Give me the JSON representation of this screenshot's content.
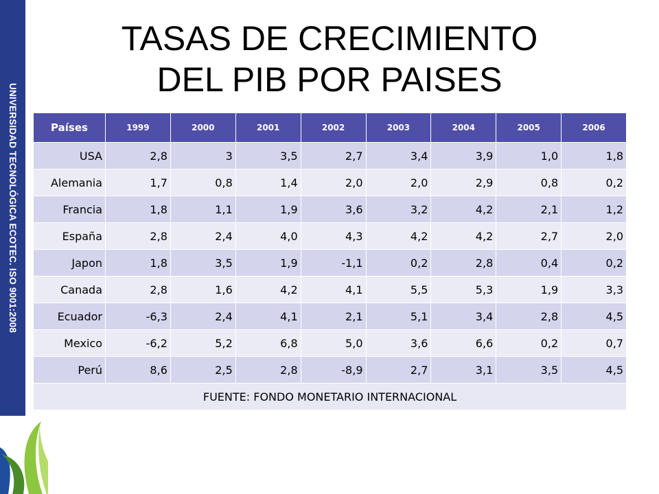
{
  "sidebar_text": "UNIVERSIDAD TECNOLÓGICA ECOTEC. ISO 9001:2008",
  "title_line1": "TASAS DE CRECIMIENTO",
  "title_line2": "DEL PIB POR PAISES",
  "table": {
    "headers": [
      "Países",
      "1999",
      "2000",
      "2001",
      "2002",
      "2003",
      "2004",
      "2005",
      "2006"
    ],
    "rows": [
      [
        "USA",
        "2,8",
        "3",
        "3,5",
        "2,7",
        "3,4",
        "3,9",
        "1,0",
        "1,8"
      ],
      [
        "Alemania",
        "1,7",
        "0,8",
        "1,4",
        "2,0",
        "2,0",
        "2,9",
        "0,8",
        "0,2"
      ],
      [
        "Francia",
        "1,8",
        "1,1",
        "1,9",
        "3,6",
        "3,2",
        "4,2",
        "2,1",
        "1,2"
      ],
      [
        "España",
        "2,8",
        "2,4",
        "4,0",
        "4,3",
        "4,2",
        "4,2",
        "2,7",
        "2,0"
      ],
      [
        "Japon",
        "1,8",
        "3,5",
        "1,9",
        "-1,1",
        "0,2",
        "2,8",
        "0,4",
        "0,2"
      ],
      [
        "Canada",
        "2,8",
        "1,6",
        "4,2",
        "4,1",
        "5,5",
        "5,3",
        "1,9",
        "3,3"
      ],
      [
        "Ecuador",
        "-6,3",
        "2,4",
        "4,1",
        "2,1",
        "5,1",
        "3,4",
        "2,8",
        "4,5"
      ],
      [
        "Mexico",
        "-6,2",
        "5,2",
        "6,8",
        "5,0",
        "3,6",
        "6,6",
        "0,2",
        "0,7"
      ],
      [
        "Perú",
        "8,6",
        "2,5",
        "2,8",
        "-8,9",
        "2,7",
        "3,1",
        "3,5",
        "4,5"
      ]
    ],
    "footer": "FUENTE: FONDO MONETARIO INTERNACIONAL"
  },
  "colors": {
    "sidebar_band": "#283c8c",
    "header_bg": "#4f4fa8",
    "row_odd": "#d4d4ec",
    "row_even": "#ebebf5",
    "logo_green": "#8dc63f",
    "logo_blue": "#1f4e9c"
  },
  "logo_icon": "ecotec-leaf-logo-icon"
}
